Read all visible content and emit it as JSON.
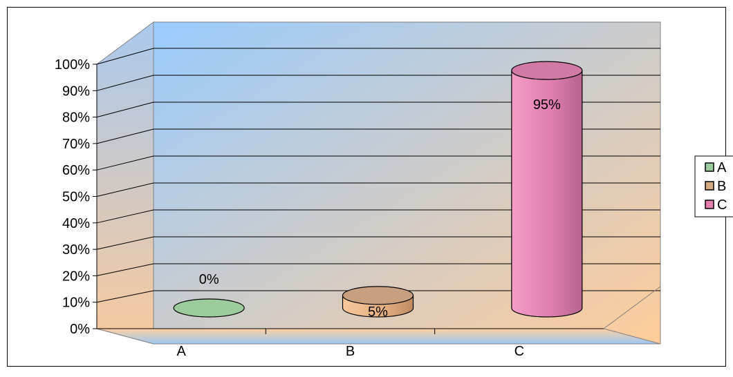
{
  "chart_data": {
    "type": "bar",
    "style": "3d-cylinder",
    "categories": [
      "A",
      "B",
      "C"
    ],
    "values": [
      0,
      5,
      95
    ],
    "data_labels": [
      "0%",
      "5%",
      "95%"
    ],
    "ylim": [
      0,
      100
    ],
    "y_ticks": [
      "0%",
      "10%",
      "20%",
      "30%",
      "40%",
      "50%",
      "60%",
      "70%",
      "80%",
      "90%",
      "100%"
    ],
    "grid": true,
    "legend": {
      "placement": "right",
      "entries": [
        "A",
        "B",
        "C"
      ]
    },
    "colors": {
      "A": "#9ccc9c",
      "B": "#d4a883",
      "C": "#e57fb0",
      "wall_blue": "#99ccff",
      "wall_orange": "#ffcc99"
    }
  }
}
